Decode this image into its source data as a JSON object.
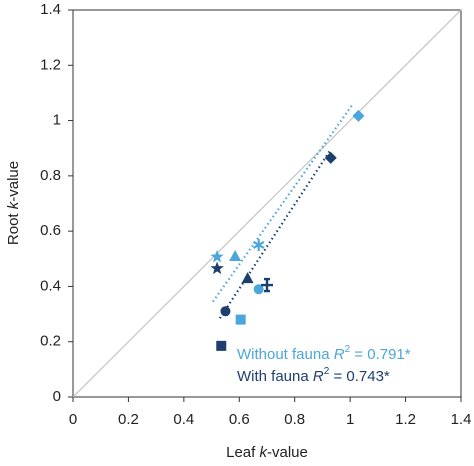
{
  "chart_data": {
    "type": "scatter",
    "x_label": [
      "Leaf ",
      "k",
      "-value"
    ],
    "y_label": [
      "Root ",
      "k",
      "-value"
    ],
    "xlim": [
      0,
      1.4
    ],
    "ylim": [
      0,
      1.4
    ],
    "xticks": [
      0,
      0.2,
      0.4,
      0.6,
      0.8,
      1,
      1.2,
      1.4
    ],
    "yticks": [
      0,
      0.2,
      0.4,
      0.6,
      0.8,
      1,
      1.2,
      1.4
    ],
    "reference_line": "1:1",
    "series": [
      {
        "name": [
          "Without fauna ",
          "R",
          "2",
          " = 0.791*"
        ],
        "color": "#4ba6dc",
        "markers": [
          "star",
          "triangle",
          "asterisk",
          "circle",
          "square",
          "diamond"
        ],
        "x": [
          0.52,
          0.585,
          0.67,
          0.67,
          0.605,
          1.03
        ],
        "values": [
          0.507,
          0.51,
          0.55,
          0.39,
          0.28,
          1.017
        ],
        "fit_x": [
          0.505,
          1.01
        ],
        "fit_y": [
          0.345,
          1.06
        ]
      },
      {
        "name": [
          "With fauna ",
          "R",
          "2",
          " = 0.743*"
        ],
        "color": "#1d3f6e",
        "markers": [
          "star",
          "triangle",
          "cross",
          "circle",
          "square",
          "diamond"
        ],
        "x": [
          0.52,
          0.63,
          0.7,
          0.55,
          0.535,
          0.93
        ],
        "values": [
          0.465,
          0.43,
          0.405,
          0.31,
          0.185,
          0.865
        ],
        "fit_x": [
          0.53,
          0.93
        ],
        "fit_y": [
          0.285,
          0.895
        ]
      }
    ]
  }
}
